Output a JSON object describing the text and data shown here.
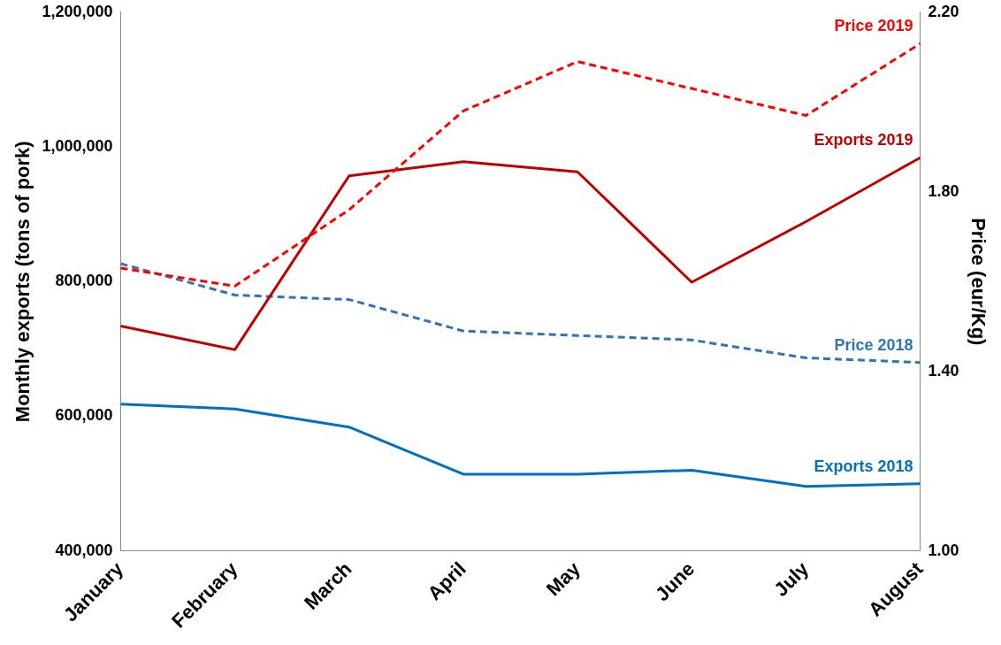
{
  "chart_data": {
    "type": "line",
    "ylabel": "Monthly exports (tons of pork)",
    "y2label": "Price (eur/Kg)",
    "categories": [
      "January",
      "February",
      "March",
      "April",
      "May",
      "June",
      "July",
      "August"
    ],
    "series": [
      {
        "name": "Price 2019",
        "color": "#ff0000",
        "axis": "y2",
        "line_style": "dashed",
        "values": [
          1.63,
          1.59,
          1.76,
          1.98,
          2.09,
          2.03,
          1.97,
          2.13
        ]
      },
      {
        "name": "Exports 2019",
        "color": "#c00000",
        "axis": "y",
        "line_style": "solid",
        "values": [
          734000,
          699000,
          957000,
          978000,
          963000,
          799000,
          889000,
          984000
        ]
      },
      {
        "name": "Price 2018",
        "color": "#2e75b6",
        "axis": "y2",
        "line_style": "dashed",
        "values": [
          1.64,
          1.57,
          1.56,
          1.49,
          1.48,
          1.47,
          1.43,
          1.42
        ]
      },
      {
        "name": "Exports 2018",
        "color": "#0070c0",
        "axis": "y",
        "line_style": "solid",
        "values": [
          618000,
          611000,
          584000,
          514000,
          514000,
          520000,
          496000,
          500000
        ]
      }
    ],
    "ylim": [
      400000,
      1200000
    ],
    "yticks": [
      {
        "value": 400000,
        "label": "400,000"
      },
      {
        "value": 600000,
        "label": "600,000"
      },
      {
        "value": 800000,
        "label": "800,000"
      },
      {
        "value": 1000000,
        "label": "1,000,000"
      },
      {
        "value": 1200000,
        "label": "1,200,000"
      }
    ],
    "y2lim": [
      1,
      2.2
    ],
    "y2ticks": [
      {
        "value": 1,
        "label": "1.00"
      },
      {
        "value": 1.4,
        "label": "1.40"
      },
      {
        "value": 1.8,
        "label": "1.80"
      },
      {
        "value": 2.2,
        "label": "2.20"
      }
    ],
    "grid": false,
    "legend": false,
    "marker": "none"
  }
}
